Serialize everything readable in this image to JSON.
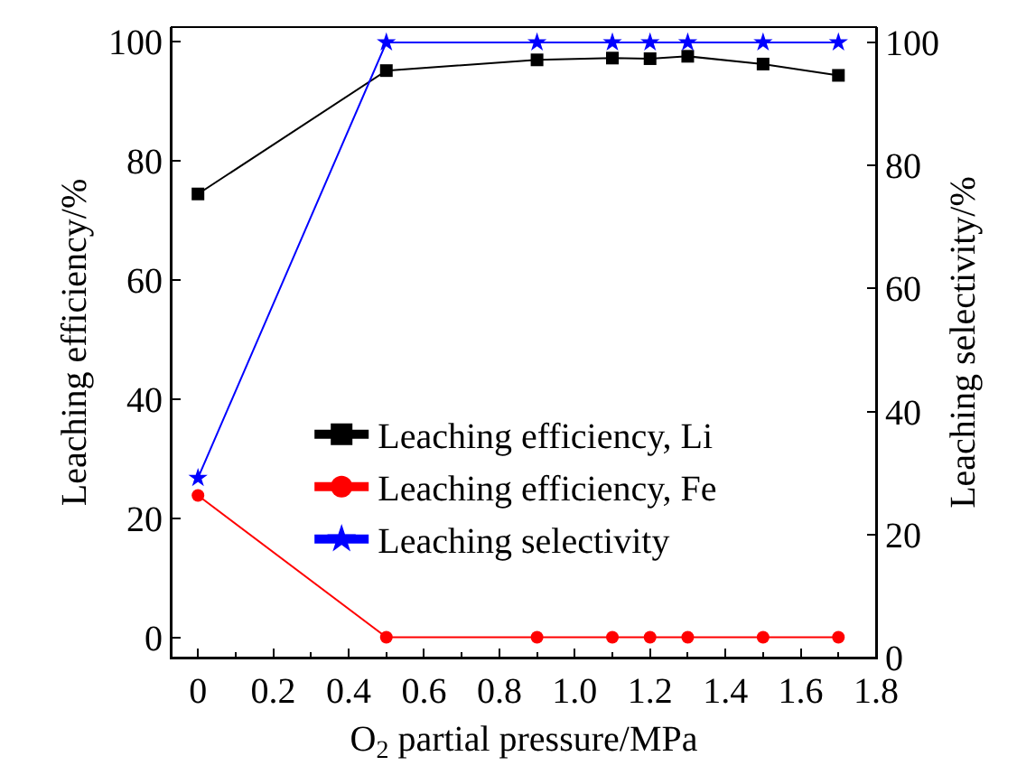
{
  "chart_data": {
    "type": "line",
    "xlabel": "O$_{2}$ partial pressure/MPa",
    "ylabel": "Leaching efficiency/%",
    "y2label": "Leaching selectivity/%",
    "x": [
      0,
      0.5,
      0.9,
      1.1,
      1.2,
      1.3,
      1.5,
      1.7
    ],
    "series": [
      {
        "name": "Leaching efficiency, Li",
        "color": "#000000",
        "marker": "square",
        "values": [
          74.4,
          95.1,
          96.9,
          97.2,
          97.1,
          97.5,
          96.2,
          94.3
        ]
      },
      {
        "name": "Leaching efficiency, Fe",
        "color": "#ff0000",
        "marker": "circle",
        "values": [
          23.8,
          0,
          0,
          0,
          0,
          0,
          0,
          0
        ]
      },
      {
        "name": "Leaching selectivity",
        "color": "#0000ff",
        "marker": "star",
        "axis": "y2",
        "values": [
          29.2,
          100,
          100,
          100,
          100,
          100,
          100,
          100
        ]
      }
    ],
    "xlim": [
      -0.07,
      1.8
    ],
    "xticks": [
      0,
      0.2,
      0.4,
      0.6,
      0.8,
      {
        "value": 1.0,
        "label": "1.0"
      },
      1.2,
      1.4,
      1.6,
      1.8
    ],
    "ylim": [
      -3.4,
      102.4
    ],
    "yticks": [
      0,
      20,
      40,
      60,
      80,
      100
    ],
    "y2lim": [
      0,
      102.5
    ],
    "y2ticks": [
      0,
      20,
      40,
      60,
      80,
      100
    ],
    "legend": "bottom right",
    "line_style": "solid"
  }
}
